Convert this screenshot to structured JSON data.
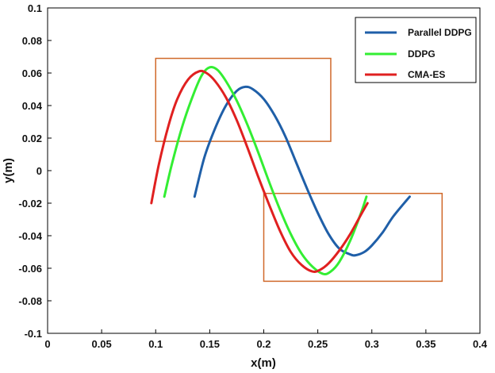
{
  "chart_data": {
    "type": "line",
    "xlabel": "x(m)",
    "ylabel": "y(m)",
    "xlim": [
      0,
      0.4
    ],
    "ylim": [
      -0.1,
      0.1
    ],
    "xticks": [
      "0",
      "0.05",
      "0.1",
      "0.15",
      "0.2",
      "0.25",
      "0.3",
      "0.35",
      "0.4"
    ],
    "yticks": [
      "-0.1",
      "-0.08",
      "-0.06",
      "-0.04",
      "-0.02",
      "0",
      "0.02",
      "0.04",
      "0.06",
      "0.08",
      "0.1"
    ],
    "grid": false,
    "legend_position": "top-right",
    "series": [
      {
        "name": "Parallel DDPG",
        "color": "#1f5fa8",
        "points": [
          [
            0.136,
            -0.016
          ],
          [
            0.145,
            0.008
          ],
          [
            0.155,
            0.026
          ],
          [
            0.165,
            0.04
          ],
          [
            0.175,
            0.049
          ],
          [
            0.183,
            0.0515
          ],
          [
            0.19,
            0.05
          ],
          [
            0.2,
            0.044
          ],
          [
            0.21,
            0.034
          ],
          [
            0.22,
            0.021
          ],
          [
            0.23,
            0.005
          ],
          [
            0.24,
            -0.011
          ],
          [
            0.25,
            -0.026
          ],
          [
            0.26,
            -0.039
          ],
          [
            0.27,
            -0.048
          ],
          [
            0.28,
            -0.0515
          ],
          [
            0.285,
            -0.052
          ],
          [
            0.293,
            -0.05
          ],
          [
            0.3,
            -0.046
          ],
          [
            0.31,
            -0.038
          ],
          [
            0.32,
            -0.028
          ],
          [
            0.335,
            -0.016
          ]
        ]
      },
      {
        "name": "DDPG",
        "color": "#33ee33",
        "points": [
          [
            0.108,
            -0.016
          ],
          [
            0.115,
            0.004
          ],
          [
            0.125,
            0.028
          ],
          [
            0.135,
            0.047
          ],
          [
            0.143,
            0.059
          ],
          [
            0.15,
            0.0635
          ],
          [
            0.157,
            0.062
          ],
          [
            0.165,
            0.055
          ],
          [
            0.175,
            0.043
          ],
          [
            0.185,
            0.028
          ],
          [
            0.195,
            0.011
          ],
          [
            0.205,
            -0.007
          ],
          [
            0.215,
            -0.024
          ],
          [
            0.225,
            -0.039
          ],
          [
            0.235,
            -0.051
          ],
          [
            0.245,
            -0.059
          ],
          [
            0.255,
            -0.0635
          ],
          [
            0.262,
            -0.062
          ],
          [
            0.27,
            -0.056
          ],
          [
            0.28,
            -0.043
          ],
          [
            0.29,
            -0.026
          ],
          [
            0.295,
            -0.016
          ]
        ]
      },
      {
        "name": "CMA-ES",
        "color": "#e02020",
        "points": [
          [
            0.096,
            -0.02
          ],
          [
            0.103,
            0.004
          ],
          [
            0.112,
            0.028
          ],
          [
            0.12,
            0.044
          ],
          [
            0.13,
            0.056
          ],
          [
            0.14,
            0.061
          ],
          [
            0.147,
            0.06
          ],
          [
            0.155,
            0.055
          ],
          [
            0.165,
            0.045
          ],
          [
            0.175,
            0.031
          ],
          [
            0.185,
            0.014
          ],
          [
            0.195,
            -0.004
          ],
          [
            0.205,
            -0.021
          ],
          [
            0.215,
            -0.037
          ],
          [
            0.225,
            -0.05
          ],
          [
            0.235,
            -0.058
          ],
          [
            0.245,
            -0.062
          ],
          [
            0.252,
            -0.061
          ],
          [
            0.26,
            -0.057
          ],
          [
            0.27,
            -0.049
          ],
          [
            0.28,
            -0.039
          ],
          [
            0.29,
            -0.027
          ],
          [
            0.296,
            -0.02
          ]
        ]
      }
    ],
    "annotations": [
      {
        "type": "rectangle",
        "x": [
          0.1,
          0.262
        ],
        "y": [
          0.018,
          0.069
        ],
        "color": "#d0692a"
      },
      {
        "type": "rectangle",
        "x": [
          0.2,
          0.365
        ],
        "y": [
          -0.068,
          -0.014
        ],
        "color": "#d0692a"
      }
    ]
  }
}
